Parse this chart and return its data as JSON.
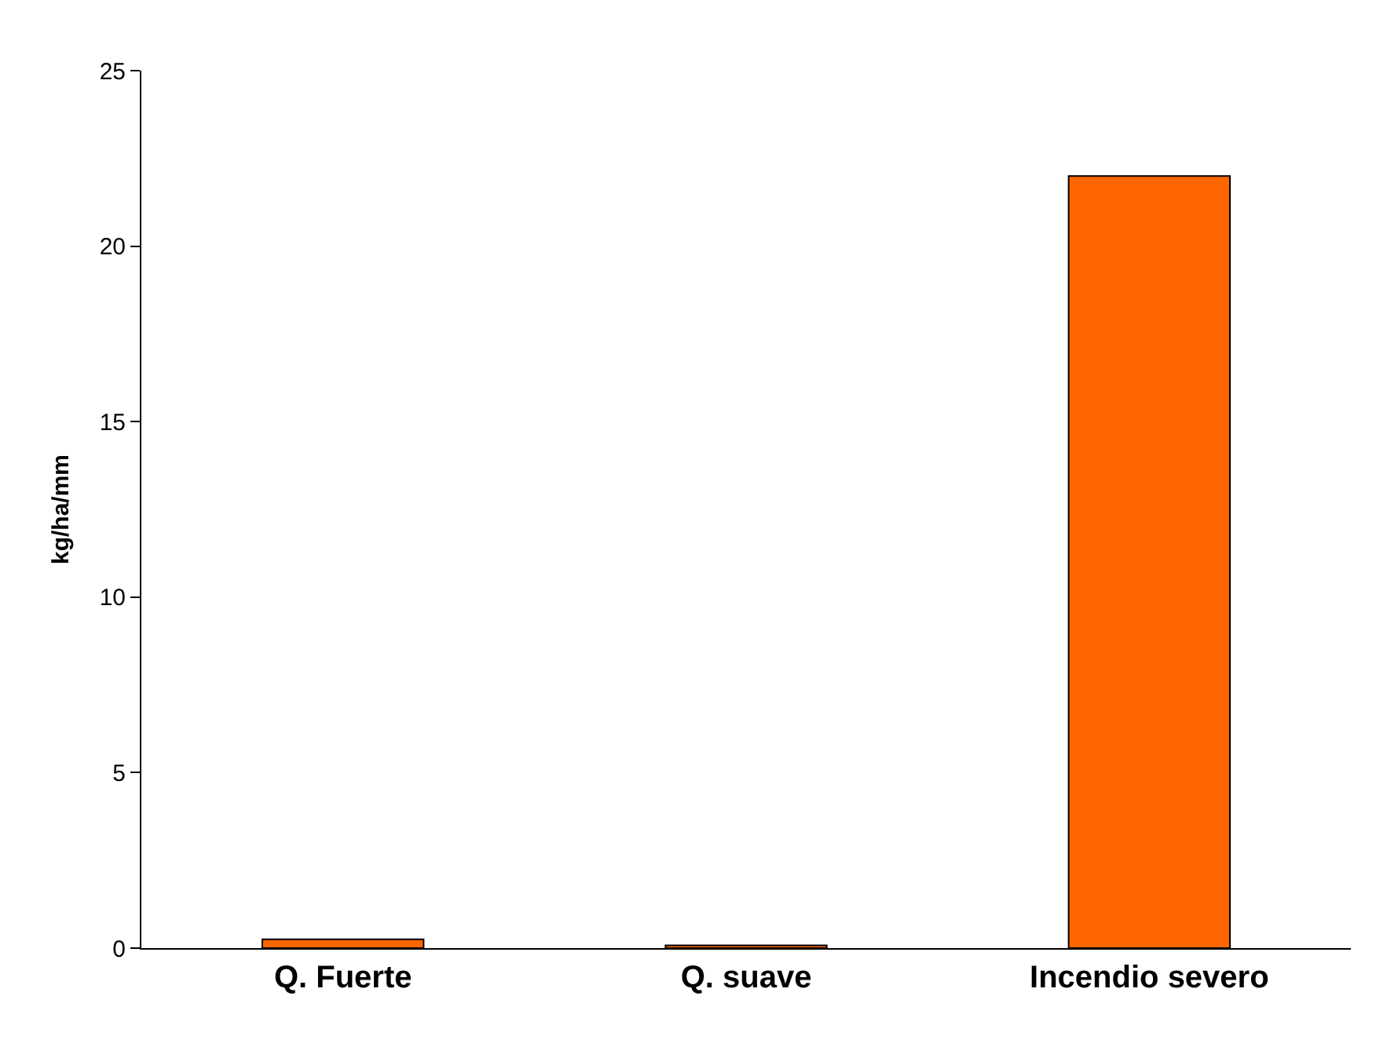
{
  "chart_data": {
    "type": "bar",
    "ylabel": "kg/ha/mm",
    "categories": [
      "Q. Fuerte",
      "Q. suave",
      "Incendio severo"
    ],
    "values": [
      0.25,
      0.08,
      22
    ],
    "color": "#ff6600",
    "ylim": [
      0,
      25
    ],
    "yticks": [
      0,
      5,
      10,
      15,
      20,
      25
    ]
  }
}
